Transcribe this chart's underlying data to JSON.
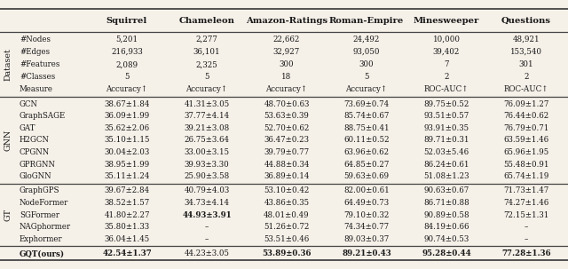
{
  "columns": [
    "",
    "Squirrel",
    "Chameleon",
    "Amazon-Ratings",
    "Roman-Empire",
    "Minesweeper",
    "Questions"
  ],
  "dataset_rows": [
    [
      "#Nodes",
      "5,201",
      "2,277",
      "22,662",
      "24,492",
      "10,000",
      "48,921"
    ],
    [
      "#Edges",
      "216,933",
      "36,101",
      "32,927",
      "93,050",
      "39,402",
      "153,540"
    ],
    [
      "#Features",
      "2,089",
      "2,325",
      "300",
      "300",
      "7",
      "301"
    ],
    [
      "#Classes",
      "5",
      "5",
      "18",
      "5",
      "2",
      "2"
    ],
    [
      "Measure",
      "Accuracy↑",
      "Accuracy↑",
      "Accuracy↑",
      "Accuracy↑",
      "ROC-AUC↑",
      "ROC-AUC↑"
    ]
  ],
  "gnn_rows": [
    [
      "GCN",
      "38.67±1.84",
      "41.31±3.05",
      "48.70±0.63",
      "73.69±0.74",
      "89.75±0.52",
      "76.09±1.27"
    ],
    [
      "GraphSAGE",
      "36.09±1.99",
      "37.77±4.14",
      "53.63±0.39",
      "85.74±0.67",
      "93.51±0.57",
      "76.44±0.62"
    ],
    [
      "GAT",
      "35.62±2.06",
      "39.21±3.08",
      "52.70±0.62",
      "88.75±0.41",
      "93.91±0.35",
      "76.79±0.71"
    ],
    [
      "H2GCN",
      "35.10±1.15",
      "26.75±3.64",
      "36.47±0.23",
      "60.11±0.52",
      "89.71±0.31",
      "63.59±1.46"
    ],
    [
      "CPGNN",
      "30.04±2.03",
      "33.00±3.15",
      "39.79±0.77",
      "63.96±0.62",
      "52.03±5.46",
      "65.96±1.95"
    ],
    [
      "GPRGNN",
      "38.95±1.99",
      "39.93±3.30",
      "44.88±0.34",
      "64.85±0.27",
      "86.24±0.61",
      "55.48±0.91"
    ],
    [
      "GloGNN",
      "35.11±1.24",
      "25.90±3.58",
      "36.89±0.14",
      "59.63±0.69",
      "51.08±1.23",
      "65.74±1.19"
    ]
  ],
  "gt_rows": [
    [
      "GraphGPS",
      "39.67±2.84",
      "40.79±4.03",
      "53.10±0.42",
      "82.00±0.61",
      "90.63±0.67",
      "71.73±1.47"
    ],
    [
      "NodeFormer",
      "38.52±1.57",
      "34.73±4.14",
      "43.86±0.35",
      "64.49±0.73",
      "86.71±0.88",
      "74.27±1.46"
    ],
    [
      "SGFormer",
      "41.80±2.27",
      "44.93±3.91",
      "48.01±0.49",
      "79.10±0.32",
      "90.89±0.58",
      "72.15±1.31"
    ],
    [
      "NAGphormer",
      "35.80±1.33",
      "–",
      "51.26±0.72",
      "74.34±0.77",
      "84.19±0.66",
      "–"
    ],
    [
      "Exphormer",
      "36.04±1.45",
      "–",
      "53.51±0.46",
      "89.03±0.37",
      "90.74±0.53",
      "–"
    ]
  ],
  "gqt_row": [
    "GQT(ours)",
    "42.54±1.37",
    "44.23±3.05",
    "53.89±0.36",
    "89.21±0.43",
    "95.28±0.44",
    "77.28±1.36"
  ],
  "bold_gqt": [
    true,
    false,
    true,
    true,
    true,
    true
  ],
  "background_color": "#f5f0e8",
  "text_color": "#1a1a1a",
  "header_fontsize": 7.2,
  "data_fontsize": 6.2,
  "side_label_fontsize": 6.8
}
